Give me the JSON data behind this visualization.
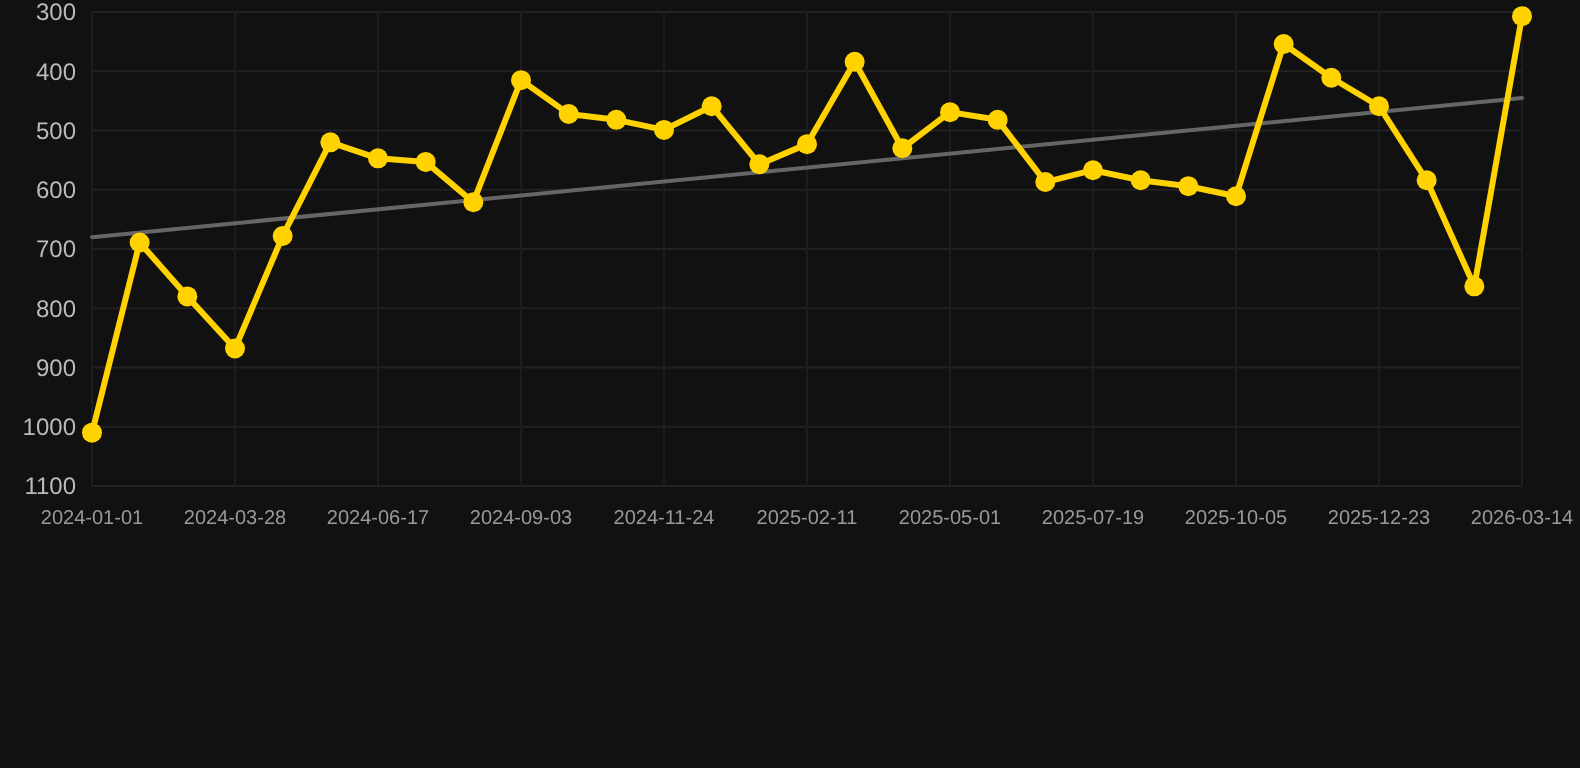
{
  "chart_data": {
    "type": "line",
    "categories": [
      "2024-01-01",
      null,
      null,
      "2024-03-28",
      null,
      null,
      "2024-06-17",
      null,
      null,
      "2024-09-03",
      null,
      null,
      "2024-11-24",
      null,
      null,
      "2025-02-11",
      null,
      null,
      "2025-05-01",
      null,
      null,
      "2025-07-19",
      null,
      null,
      "2025-10-05",
      null,
      null,
      "2025-12-23",
      null,
      null,
      "2026-03-14"
    ],
    "series": [
      {
        "color": "#ffd200",
        "values": [
          1010,
          689,
          780,
          868,
          678,
          520,
          547,
          553,
          621,
          415,
          472,
          482,
          499,
          459,
          557,
          523,
          384,
          530,
          469,
          482,
          587,
          567,
          584,
          594,
          611,
          354,
          411,
          459,
          584,
          763,
          307
        ]
      },
      {
        "type": "line",
        "color": "#666666",
        "values": [
          680,
          null,
          null,
          null,
          null,
          null,
          null,
          null,
          null,
          null,
          null,
          null,
          null,
          null,
          null,
          null,
          null,
          null,
          null,
          null,
          null,
          null,
          null,
          null,
          null,
          null,
          null,
          null,
          null,
          null,
          445
        ],
        "marker": "none"
      }
    ],
    "ylim": [
      1100,
      300
    ],
    "yticks": [
      300,
      400,
      500,
      600,
      700,
      800,
      900,
      1000,
      1100
    ],
    "grid": true,
    "marker": "circle",
    "line_style": "solid"
  }
}
